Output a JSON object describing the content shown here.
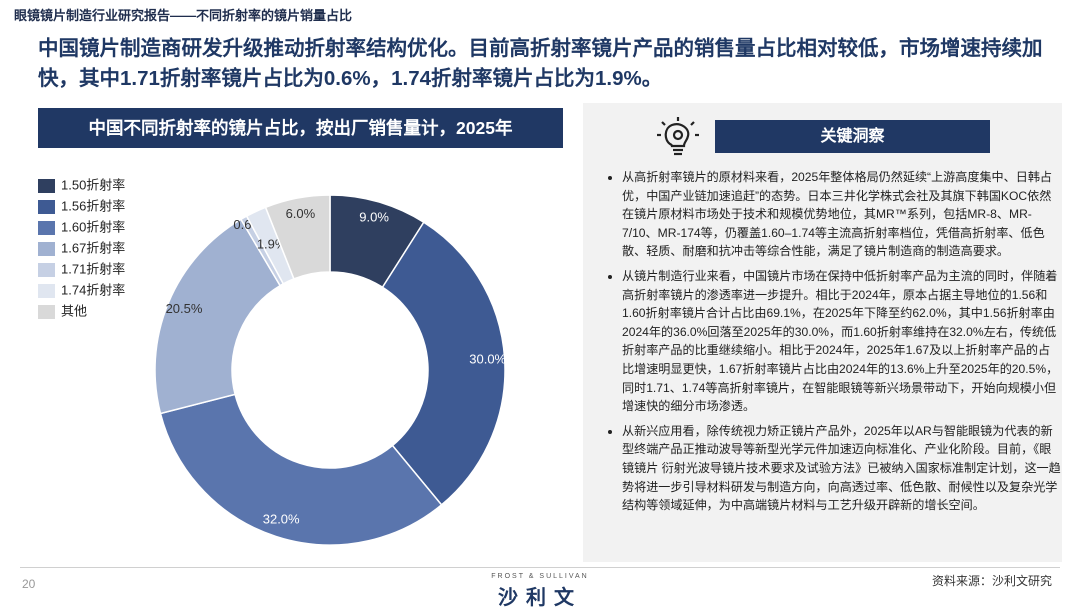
{
  "header": {
    "title": "眼镜镜片制造行业研究报告——不同折射率的镜片销量占比"
  },
  "headline": "中国镜片制造商研发升级推动折射率结构优化。目前高折射率镜片产品的销售量占比相对较低，市场增速持续加快，其中1.71折射率镜片占比为0.6%，1.74折射率镜片占比为1.9%。",
  "chart_data": {
    "type": "donut",
    "title": "中国不同折射率的镜片占比，按出厂销售量计，2025年",
    "categories": [
      "1.50折射率",
      "1.56折射率",
      "1.60折射率",
      "1.67折射率",
      "1.71折射率",
      "1.74折射率",
      "其他"
    ],
    "values": [
      9,
      30,
      32,
      20.5,
      0.6,
      1.9,
      6
    ],
    "value_labels": [
      "9.0%",
      "30.0%",
      "32.0%",
      "20.5%",
      "0.6%",
      "1.9%",
      "6.0%"
    ],
    "colors": [
      "#2f3f5f",
      "#3e5a93",
      "#5a75ad",
      "#a0b1d1",
      "#c6d0e4",
      "#e0e6f0",
      "#d9d9d9"
    ],
    "legend": "left"
  },
  "insights": {
    "title": "关键洞察",
    "bullets": [
      "从高折射率镜片的原材料来看，2025年整体格局仍然延续“上游高度集中、日韩占优，中国产业链加速追赶”的态势。日本三井化学株式会社及其旗下韩国KOC依然在镜片原材料市场处于技术和规模优势地位，其MR™系列，包括MR-8、MR-7/10、MR-174等，仍覆盖1.60–1.74等主流高折射率档位，凭借高折射率、低色散、轻质、耐磨和抗冲击等综合性能，满足了镜片制造商的制造高要求。",
      "从镜片制造行业来看，中国镜片市场在保持中低折射率产品为主流的同时，伴随着高折射率镜片的渗透率进一步提升。相比于2024年，原本占据主导地位的1.56和1.60折射率镜片合计占比由69.1%，在2025年下降至约62.0%，其中1.56折射率由2024年的36.0%回落至2025年的30.0%，而1.60折射率维持在32.0%左右，传统低折射率产品的比重继续缩小。相比于2024年，2025年1.67及以上折射率产品的占比增速明显更快，1.67折射率镜片占比由2024年的13.6%上升至2025年的20.5%，同时1.71、1.74等高折射率镜片，在智能眼镜等新兴场景带动下，开始向规模小但增速快的细分市场渗透。",
      "从新兴应用看，除传统视力矫正镜片产品外，2025年以AR与智能眼镜为代表的新型终端产品正推动波导等新型光学元件加速迈向标准化、产业化阶段。目前，《眼镜镜片 衍射光波导镜片技术要求及试验方法》已被纳入国家标准制定计划，这一趋势将进一步引导材料研发与制造方向，向高透过率、低色散、耐候性以及复杂光学结构等领域延伸，为中高端镜片材料与工艺升级开辟新的增长空间。"
    ]
  },
  "footer": {
    "page": "20",
    "logo_top": "FROST & SULLIVAN",
    "logo": "沙利文",
    "source": "资料来源：沙利文研究"
  }
}
